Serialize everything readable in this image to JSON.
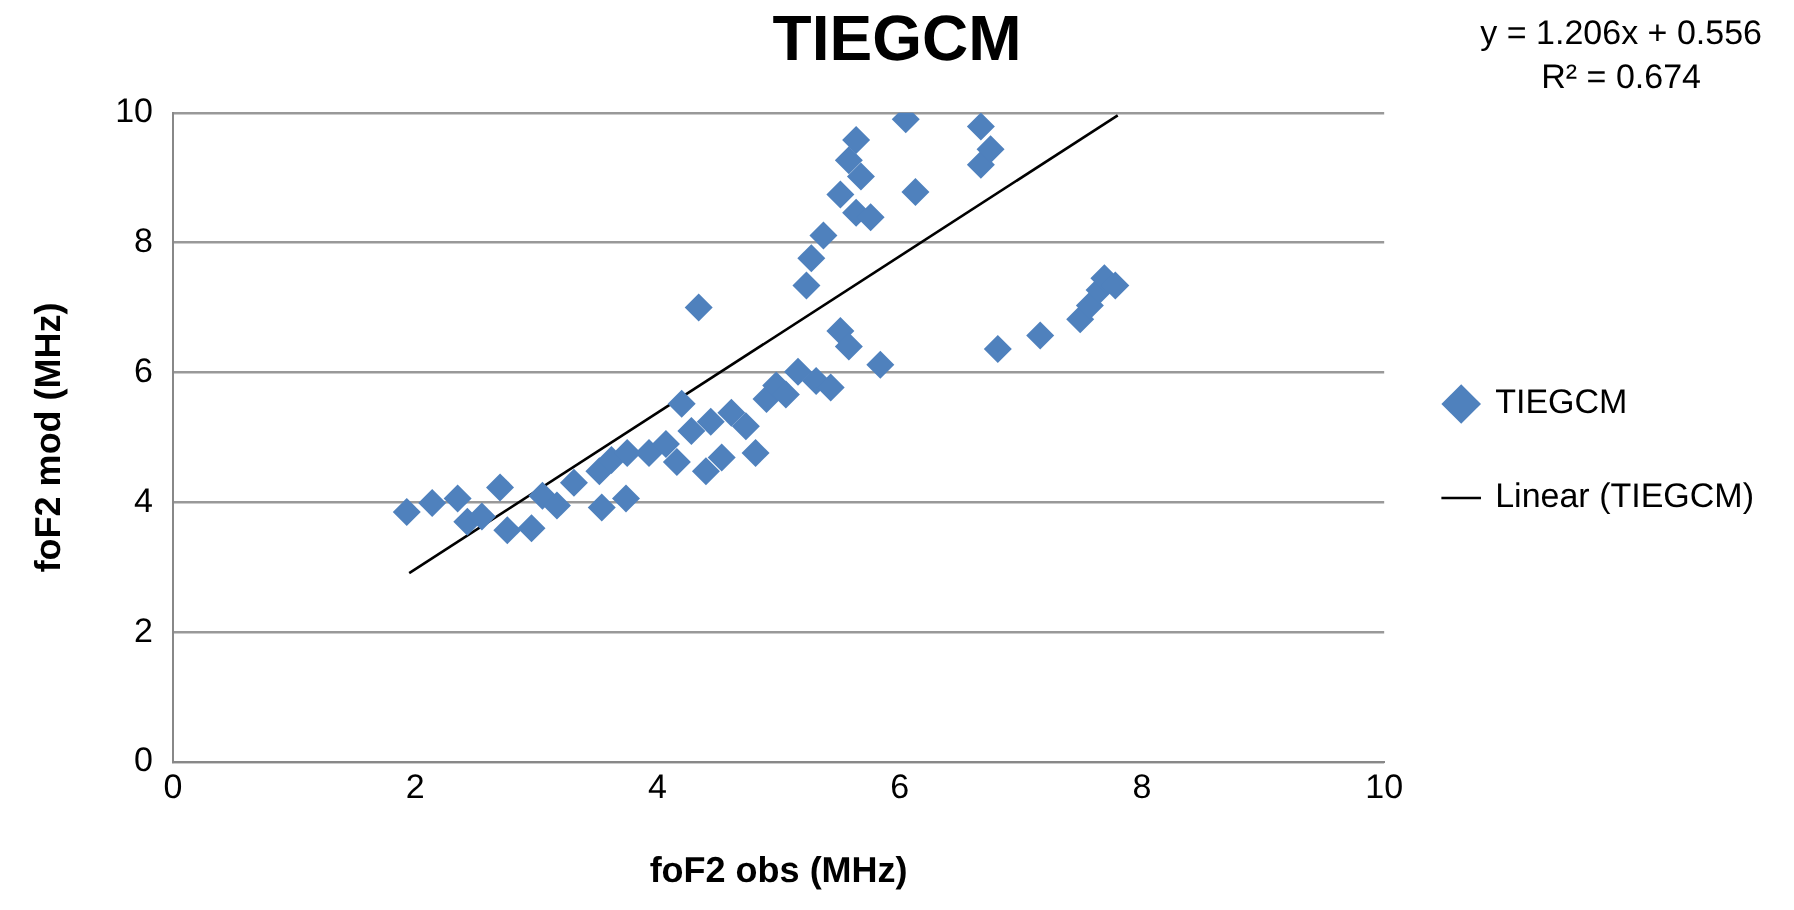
{
  "chart_data": {
    "type": "scatter",
    "title": "TIEGCM",
    "xlabel": "foF2 obs (MHz)",
    "ylabel": "foF2 mod (MHz)",
    "annotations": [
      "y = 1.206x + 0.556",
      "R² = 0.674"
    ],
    "xlim": [
      0,
      10
    ],
    "xticks": [
      0,
      2,
      4,
      6,
      8,
      10
    ],
    "ylim": [
      0,
      10
    ],
    "yticks": [
      0,
      2,
      4,
      6,
      8,
      10
    ],
    "grid": "y",
    "legend": "right",
    "marker": "diamond",
    "series": [
      {
        "name": "TIEGCM",
        "color": "#4f81bd",
        "x": [
          1.93,
          2.14,
          2.35,
          2.43,
          2.55,
          2.7,
          2.76,
          2.96,
          3.05,
          3.17,
          3.31,
          3.52,
          3.54,
          3.62,
          3.74,
          3.75,
          3.93,
          4.07,
          4.16,
          4.2,
          4.28,
          4.34,
          4.4,
          4.44,
          4.53,
          4.61,
          4.73,
          4.81,
          4.9,
          4.98,
          5.06,
          5.16,
          5.23,
          5.27,
          5.31,
          5.37,
          5.43,
          5.51,
          5.58,
          5.51,
          5.58,
          5.64,
          5.68,
          5.64,
          5.76,
          5.84,
          6.05,
          6.13,
          6.67,
          6.67,
          6.75,
          6.81,
          7.16,
          7.49,
          7.57,
          7.65,
          7.69,
          7.78
        ],
        "values": [
          3.85,
          3.99,
          4.06,
          3.7,
          3.78,
          4.23,
          3.57,
          3.6,
          4.1,
          3.95,
          4.3,
          4.48,
          3.92,
          4.65,
          4.06,
          4.76,
          4.76,
          4.9,
          4.62,
          5.52,
          5.1,
          7.0,
          4.48,
          5.24,
          4.69,
          5.38,
          5.17,
          4.76,
          5.59,
          5.8,
          5.66,
          6.01,
          7.34,
          7.76,
          5.87,
          8.11,
          5.77,
          6.64,
          6.4,
          8.74,
          9.27,
          9.58,
          9.02,
          8.46,
          8.39,
          6.12,
          9.9,
          8.78,
          9.79,
          9.2,
          9.44,
          6.36,
          6.57,
          6.82,
          7.03,
          7.27,
          7.45,
          7.34
        ]
      },
      {
        "name": "Linear (TIEGCM)",
        "color": "#000000",
        "type": "line",
        "marker": "none",
        "x": [
          1.95,
          7.8
        ],
        "values": [
          2.91,
          9.96
        ]
      }
    ]
  }
}
